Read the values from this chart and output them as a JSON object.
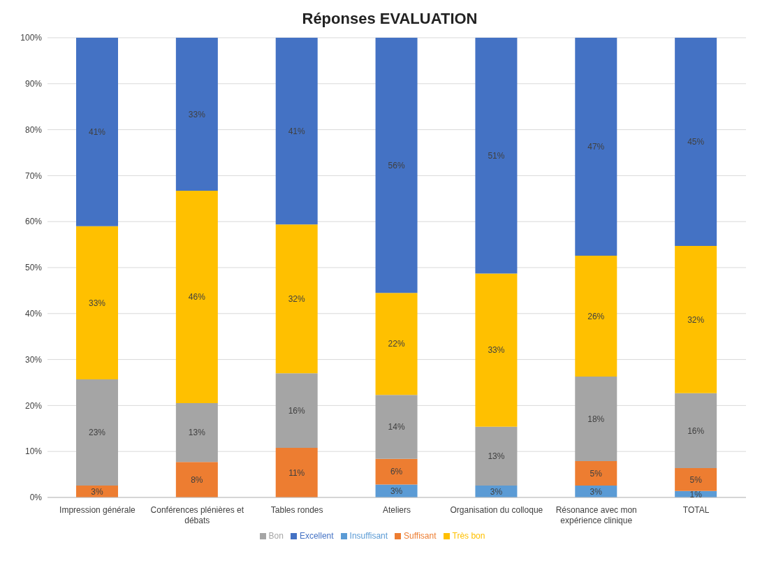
{
  "chart_data": {
    "type": "bar",
    "title": "Réponses EVALUATION",
    "stacked": true,
    "categories": [
      "Impression générale",
      "Conférences plénières et débats",
      "Tables rondes",
      "Ateliers",
      "Organisation du colloque",
      "Résonance avec mon expérience clinique",
      "TOTAL"
    ],
    "series": [
      {
        "name": "Insuffisant",
        "color": "#5b9bd5",
        "values": [
          0,
          0,
          0,
          2.8,
          2.6,
          2.6,
          1.4
        ],
        "value_labels": [
          null,
          null,
          null,
          "3%",
          "3%",
          "3%",
          "1%"
        ]
      },
      {
        "name": "Suffisant",
        "color": "#ed7d31",
        "values": [
          2.6,
          7.7,
          10.8,
          5.6,
          0,
          5.3,
          5.0
        ],
        "value_labels": [
          "3%",
          "8%",
          "11%",
          "6%",
          null,
          "5%",
          "5%"
        ]
      },
      {
        "name": "Bon",
        "color": "#a5a5a5",
        "values": [
          23.1,
          12.8,
          16.2,
          13.9,
          12.8,
          18.4,
          16.3
        ],
        "value_labels": [
          "23%",
          "13%",
          "16%",
          "14%",
          "13%",
          "18%",
          "16%"
        ]
      },
      {
        "name": "Très bon",
        "color": "#ffc000",
        "values": [
          33.3,
          46.2,
          32.4,
          22.2,
          33.3,
          26.3,
          32.0
        ],
        "value_labels": [
          "33%",
          "46%",
          "32%",
          "22%",
          "33%",
          "26%",
          "32%"
        ]
      },
      {
        "name": "Excellent",
        "color": "#4472c4",
        "values": [
          41.0,
          33.3,
          40.6,
          55.5,
          51.3,
          47.4,
          45.3
        ],
        "value_labels": [
          "41%",
          "33%",
          "41%",
          "56%",
          "51%",
          "47%",
          "45%"
        ]
      }
    ],
    "ylim": [
      0,
      100
    ],
    "yticks": [
      {
        "value": 0,
        "label": "0%"
      },
      {
        "value": 10,
        "label": "10%"
      },
      {
        "value": 20,
        "label": "20%"
      },
      {
        "value": 30,
        "label": "30%"
      },
      {
        "value": 40,
        "label": "40%"
      },
      {
        "value": 50,
        "label": "50%"
      },
      {
        "value": 60,
        "label": "60%"
      },
      {
        "value": 70,
        "label": "70%"
      },
      {
        "value": 80,
        "label": "80%"
      },
      {
        "value": 90,
        "label": "90%"
      },
      {
        "value": 100,
        "label": "100%"
      }
    ],
    "grid": "y",
    "legend": "bottom"
  }
}
